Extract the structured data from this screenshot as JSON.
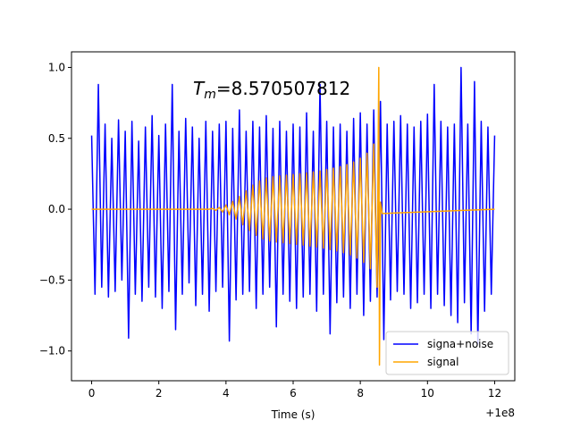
{
  "chart_data": {
    "type": "line",
    "xlabel": "Time (s)",
    "x_offset_label": "+1e8",
    "annotation": {
      "symbol": "T",
      "subscript": "m",
      "text": "=8.570507812"
    },
    "xlim": [
      -0.6,
      12.6
    ],
    "xticks": [
      0,
      2,
      4,
      6,
      8,
      10,
      12
    ],
    "ylim": [
      -1.21,
      1.11
    ],
    "yticks": [
      {
        "value": -1,
        "label": "−1.0"
      },
      {
        "value": -0.5,
        "label": "−0.5"
      },
      {
        "value": 0,
        "label": "0.0"
      },
      {
        "value": 0.5,
        "label": "0.5"
      },
      {
        "value": 1,
        "label": "1.0"
      }
    ],
    "legend": "lower right",
    "series": [
      {
        "name": "signa+noise",
        "color": "#0000ff",
        "x": [
          0,
          0.1,
          0.2,
          0.3,
          0.4,
          0.5,
          0.6,
          0.7,
          0.8,
          0.9,
          1,
          1.1,
          1.2,
          1.3,
          1.4,
          1.5,
          1.6,
          1.7,
          1.8,
          1.9,
          2,
          2.1,
          2.2,
          2.3,
          2.4,
          2.5,
          2.6,
          2.7,
          2.8,
          2.9,
          3,
          3.1,
          3.2,
          3.3,
          3.4,
          3.5,
          3.6,
          3.7,
          3.8,
          3.9,
          4,
          4.1,
          4.2,
          4.3,
          4.4,
          4.5,
          4.6,
          4.7,
          4.8,
          4.9,
          5,
          5.1,
          5.2,
          5.3,
          5.4,
          5.5,
          5.6,
          5.7,
          5.8,
          5.9,
          6,
          6.1,
          6.2,
          6.3,
          6.4,
          6.5,
          6.6,
          6.7,
          6.8,
          6.9,
          7,
          7.1,
          7.2,
          7.3,
          7.4,
          7.5,
          7.6,
          7.7,
          7.8,
          7.9,
          8,
          8.1,
          8.2,
          8.3,
          8.4,
          8.5,
          8.6,
          8.7,
          8.8,
          8.9,
          9,
          9.1,
          9.2,
          9.3,
          9.4,
          9.5,
          9.6,
          9.7,
          9.8,
          9.9,
          10,
          10.1,
          10.2,
          10.3,
          10.4,
          10.5,
          10.6,
          10.7,
          10.8,
          10.9,
          11,
          11.1,
          11.2,
          11.3,
          11.4,
          11.5,
          11.6,
          11.7,
          11.8,
          11.9,
          12
        ],
        "values": [
          0.52,
          -0.6,
          0.88,
          -0.55,
          0.6,
          -0.62,
          0.5,
          -0.58,
          0.63,
          -0.5,
          0.55,
          -0.91,
          0.62,
          -0.6,
          0.48,
          -0.65,
          0.58,
          -0.55,
          0.66,
          -0.62,
          0.52,
          -0.7,
          0.6,
          -0.58,
          0.88,
          -0.85,
          0.55,
          -0.6,
          0.64,
          -0.52,
          0.58,
          -0.68,
          0.5,
          -0.6,
          0.62,
          -0.72,
          0.55,
          -0.58,
          0.6,
          -0.55,
          0.62,
          -0.93,
          0.57,
          -0.64,
          0.7,
          -0.6,
          0.55,
          -0.58,
          0.62,
          -0.7,
          0.58,
          -0.6,
          0.66,
          -0.55,
          0.57,
          -0.83,
          0.62,
          -0.6,
          0.55,
          -0.65,
          0.6,
          -0.7,
          0.58,
          -0.62,
          0.68,
          -0.6,
          0.55,
          -0.72,
          0.88,
          -0.6,
          0.62,
          -0.88,
          0.58,
          -0.66,
          0.6,
          -0.62,
          0.55,
          -0.7,
          0.64,
          -0.6,
          0.68,
          -0.75,
          0.6,
          -0.65,
          0.7,
          -0.62,
          0.76,
          -0.92,
          0.6,
          -0.64,
          0.62,
          -0.58,
          0.66,
          -0.6,
          0.6,
          -0.7,
          0.58,
          -0.66,
          0.62,
          -0.6,
          0.67,
          -0.7,
          0.88,
          -0.6,
          0.62,
          -0.68,
          0.58,
          -0.75,
          0.6,
          -0.8,
          1.0,
          -0.66,
          0.6,
          -0.88,
          0.9,
          -0.95,
          0.62,
          -0.72,
          0.58,
          -0.6,
          0.52
        ]
      },
      {
        "name": "signal",
        "color": "#ffa500",
        "x": [
          0,
          3.5,
          3.6,
          3.7,
          3.8,
          3.9,
          4,
          4.1,
          4.2,
          4.3,
          4.4,
          4.5,
          4.6,
          4.7,
          4.8,
          4.9,
          5,
          5.1,
          5.2,
          5.3,
          5.4,
          5.5,
          5.6,
          5.7,
          5.8,
          5.9,
          6,
          6.1,
          6.2,
          6.3,
          6.4,
          6.5,
          6.6,
          6.7,
          6.8,
          6.9,
          7,
          7.1,
          7.2,
          7.3,
          7.4,
          7.5,
          7.6,
          7.7,
          7.8,
          7.9,
          8,
          8.1,
          8.2,
          8.3,
          8.4,
          8.5,
          8.55,
          8.57,
          8.6,
          8.65,
          12
        ],
        "values": [
          0,
          0,
          0.005,
          -0.008,
          0.012,
          -0.02,
          0.03,
          -0.04,
          0.055,
          -0.07,
          0.09,
          -0.11,
          0.13,
          -0.15,
          0.17,
          -0.185,
          0.2,
          -0.21,
          0.22,
          -0.225,
          0.23,
          -0.232,
          0.235,
          -0.237,
          0.24,
          -0.242,
          0.245,
          -0.248,
          0.25,
          -0.253,
          0.256,
          -0.26,
          0.263,
          -0.267,
          0.27,
          -0.275,
          0.28,
          -0.285,
          0.29,
          -0.295,
          0.3,
          -0.307,
          0.315,
          -0.323,
          0.333,
          -0.345,
          0.36,
          -0.375,
          0.395,
          -0.42,
          0.46,
          -0.55,
          1.0,
          -1.1,
          0.05,
          -0.03,
          0
        ]
      }
    ]
  }
}
